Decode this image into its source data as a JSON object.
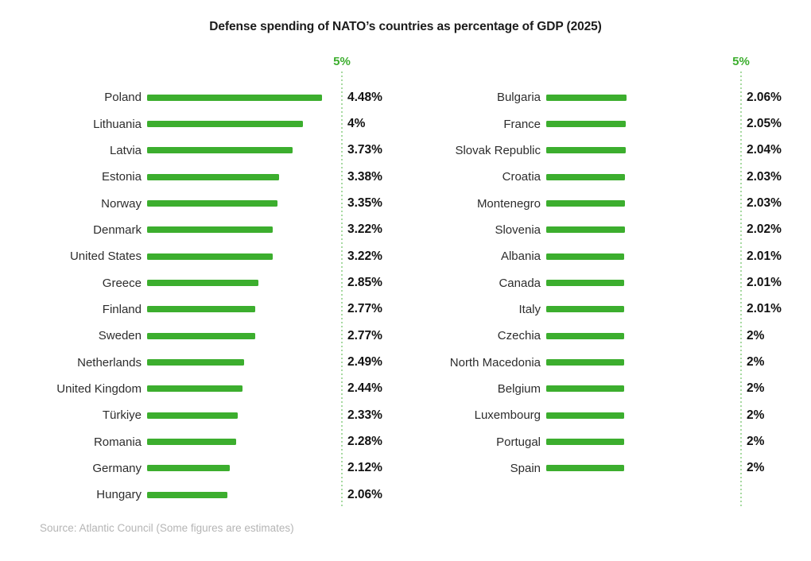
{
  "title": "Defense spending of NATO’s countries as percentage of GDP (2025)",
  "source": "Source: Atlantic Council (Some figures are estimates)",
  "colors": {
    "bar": "#3cae2e",
    "axis_label": "#3cae2e",
    "dashed_line": "rgba(60,174,46,0.45)",
    "title": "#1b1b1b",
    "label": "#2d2d2d",
    "value": "#121212",
    "source": "#b5b5b5"
  },
  "chart_data": {
    "type": "bar",
    "orientation": "horizontal",
    "title": "Defense spending of NATO’s countries as percentage of GDP (2025)",
    "unit": "% of GDP",
    "xlim": [
      0,
      5
    ],
    "grid": false,
    "legend": false,
    "axis_marker": {
      "value": 5,
      "label": "5%"
    },
    "panels": [
      {
        "items": [
          {
            "country": "Poland",
            "value": 4.48,
            "label": "4.48%"
          },
          {
            "country": "Lithuania",
            "value": 4.0,
            "label": "4%"
          },
          {
            "country": "Latvia",
            "value": 3.73,
            "label": "3.73%"
          },
          {
            "country": "Estonia",
            "value": 3.38,
            "label": "3.38%"
          },
          {
            "country": "Norway",
            "value": 3.35,
            "label": "3.35%"
          },
          {
            "country": "Denmark",
            "value": 3.22,
            "label": "3.22%"
          },
          {
            "country": "United States",
            "value": 3.22,
            "label": "3.22%"
          },
          {
            "country": "Greece",
            "value": 2.85,
            "label": "2.85%"
          },
          {
            "country": "Finland",
            "value": 2.77,
            "label": "2.77%"
          },
          {
            "country": "Sweden",
            "value": 2.77,
            "label": "2.77%"
          },
          {
            "country": "Netherlands",
            "value": 2.49,
            "label": "2.49%"
          },
          {
            "country": "United Kingdom",
            "value": 2.44,
            "label": "2.44%"
          },
          {
            "country": "Türkiye",
            "value": 2.33,
            "label": "2.33%"
          },
          {
            "country": "Romania",
            "value": 2.28,
            "label": "2.28%"
          },
          {
            "country": "Germany",
            "value": 2.12,
            "label": "2.12%"
          },
          {
            "country": "Hungary",
            "value": 2.06,
            "label": "2.06%"
          }
        ]
      },
      {
        "items": [
          {
            "country": "Bulgaria",
            "value": 2.06,
            "label": "2.06%"
          },
          {
            "country": "France",
            "value": 2.05,
            "label": "2.05%"
          },
          {
            "country": "Slovak Republic",
            "value": 2.04,
            "label": "2.04%"
          },
          {
            "country": "Croatia",
            "value": 2.03,
            "label": "2.03%"
          },
          {
            "country": "Montenegro",
            "value": 2.03,
            "label": "2.03%"
          },
          {
            "country": "Slovenia",
            "value": 2.02,
            "label": "2.02%"
          },
          {
            "country": "Albania",
            "value": 2.01,
            "label": "2.01%"
          },
          {
            "country": "Canada",
            "value": 2.01,
            "label": "2.01%"
          },
          {
            "country": "Italy",
            "value": 2.01,
            "label": "2.01%"
          },
          {
            "country": "Czechia",
            "value": 2.0,
            "label": "2%"
          },
          {
            "country": "North Macedonia",
            "value": 2.0,
            "label": "2%"
          },
          {
            "country": "Belgium",
            "value": 2.0,
            "label": "2%"
          },
          {
            "country": "Luxembourg",
            "value": 2.0,
            "label": "2%"
          },
          {
            "country": "Portugal",
            "value": 2.0,
            "label": "2%"
          },
          {
            "country": "Spain",
            "value": 2.0,
            "label": "2%"
          }
        ]
      }
    ]
  }
}
